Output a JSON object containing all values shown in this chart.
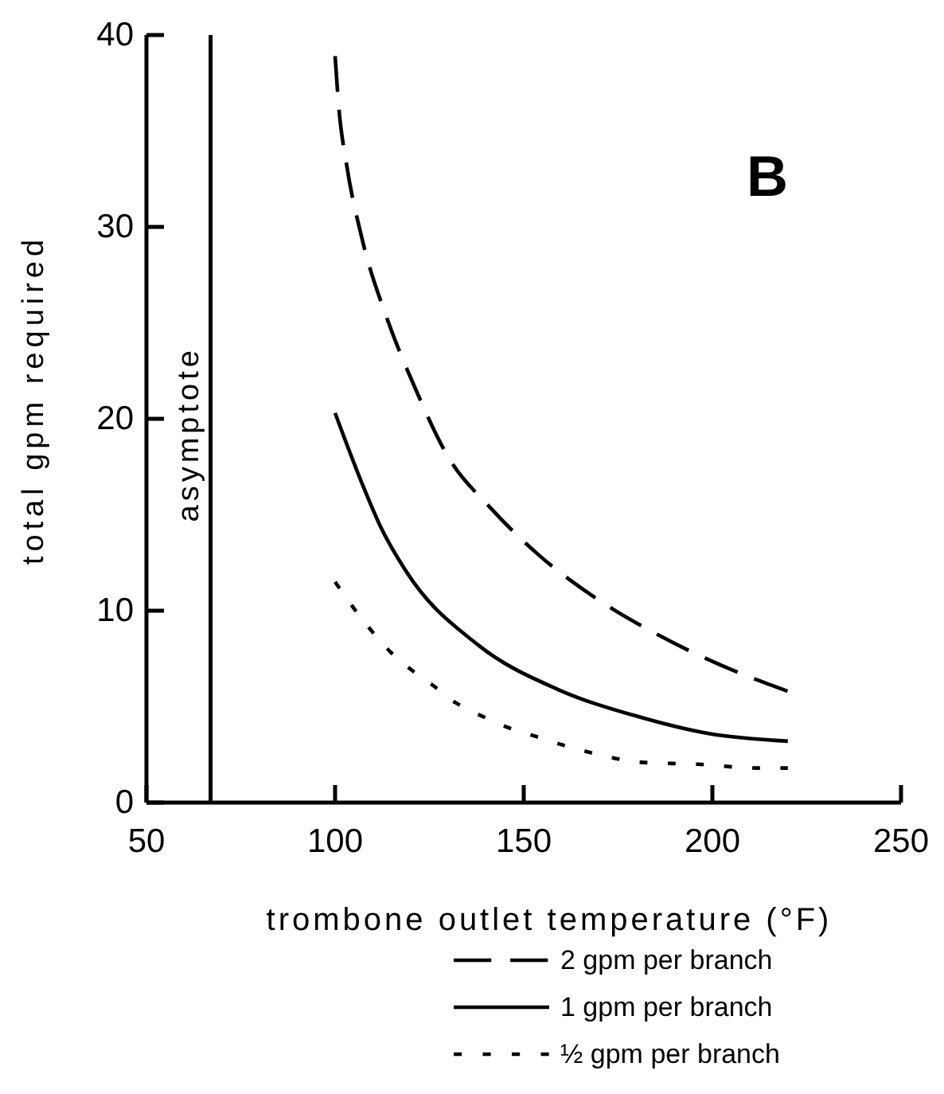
{
  "chart_data": {
    "type": "line",
    "xlabel": "trombone outlet temperature (°F)",
    "ylabel": "total gpm required",
    "xlim": [
      50,
      250
    ],
    "xticks": [
      50,
      100,
      150,
      200,
      250
    ],
    "ylim": [
      0,
      40
    ],
    "yticks": [
      0,
      10,
      20,
      30,
      40
    ],
    "legend": "bottom",
    "annotations": [
      "B"
    ],
    "ref_lines": [
      {
        "axis": "x",
        "value": 67,
        "label": "asymptote"
      }
    ],
    "series": [
      {
        "name": "2 gpm per branch",
        "color": "#000000",
        "line_style": "dashed",
        "x": [
          100,
          101,
          103,
          107,
          114,
          121,
          130,
          141,
          154,
          168,
          186,
          203,
          220
        ],
        "values": [
          38.9,
          36.2,
          33.3,
          29.5,
          25.1,
          21.7,
          18.0,
          15.4,
          12.9,
          10.8,
          8.7,
          7.1,
          5.8
        ]
      },
      {
        "name": "1 gpm per branch",
        "color": "#000000",
        "line_style": "solid",
        "x": [
          100,
          107,
          112,
          119,
          138,
          159,
          180,
          199,
          220
        ],
        "values": [
          20.3,
          16.7,
          14.4,
          12.0,
          8.2,
          5.9,
          4.5,
          3.6,
          3.2
        ]
      },
      {
        "name": "½ gpm per branch",
        "color": "#000000",
        "line_style": "dotted",
        "x": [
          100,
          107,
          116,
          121,
          126,
          132,
          139,
          146,
          154,
          162,
          170,
          181,
          196,
          212,
          220
        ],
        "values": [
          11.5,
          9.6,
          7.6,
          6.8,
          6.1,
          5.2,
          4.5,
          3.9,
          3.4,
          2.9,
          2.5,
          2.1,
          2.0,
          1.8,
          1.8
        ]
      }
    ]
  }
}
